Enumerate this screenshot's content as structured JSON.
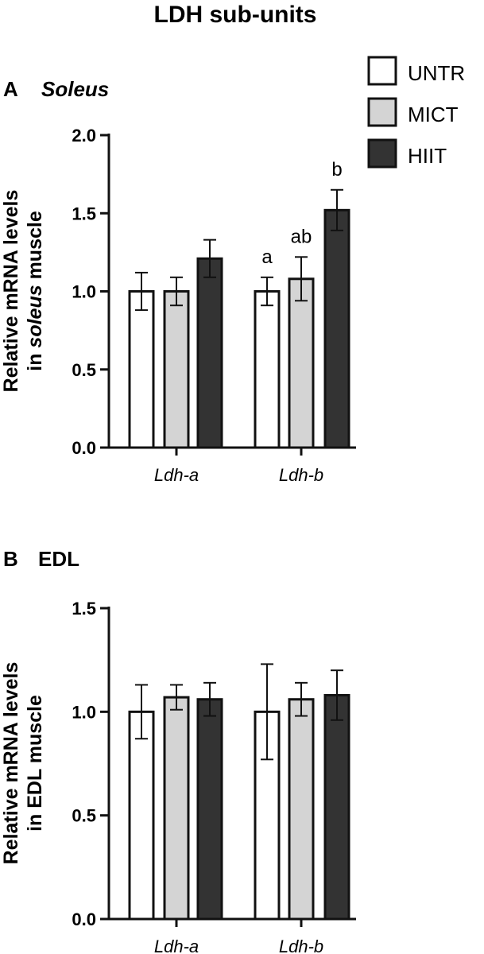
{
  "figure_title": "LDH sub-units",
  "legend": [
    {
      "label": "UNTR",
      "color": "#ffffff"
    },
    {
      "label": "MICT",
      "color": "#d4d4d4"
    },
    {
      "label": "HIIT",
      "color": "#333333"
    }
  ],
  "chart_data": [
    {
      "type": "bar",
      "panel_letter": "A",
      "panel_name": "Soleus",
      "ylabel_pre": "Relative mRNA levels",
      "ylabel_line2_pre": "in ",
      "ylabel_line2_em": "soleus",
      "ylabel_line2_post": " muscle",
      "categories": [
        "Ldh-a",
        "Ldh-b"
      ],
      "ylim": [
        0,
        2.0
      ],
      "yticks": [
        "0.0",
        "0.5",
        "1.0",
        "1.5",
        "2.0"
      ],
      "series": [
        {
          "name": "UNTR",
          "values": [
            1.0,
            1.0
          ],
          "errors": [
            0.12,
            0.09
          ]
        },
        {
          "name": "MICT",
          "values": [
            1.0,
            1.08
          ],
          "errors": [
            0.09,
            0.14
          ]
        },
        {
          "name": "HIIT",
          "values": [
            1.21,
            1.52
          ],
          "errors": [
            0.12,
            0.13
          ]
        }
      ],
      "annotations": [
        {
          "category": 1,
          "series": 0,
          "text": "a"
        },
        {
          "category": 1,
          "series": 1,
          "text": "ab"
        },
        {
          "category": 1,
          "series": 2,
          "text": "b"
        }
      ]
    },
    {
      "type": "bar",
      "panel_letter": "B",
      "panel_name": "EDL",
      "ylabel_pre": "Relative mRNA levels",
      "ylabel_line2_pre": "in EDL muscle",
      "ylabel_line2_em": "",
      "ylabel_line2_post": "",
      "categories": [
        "Ldh-a",
        "Ldh-b"
      ],
      "ylim": [
        0,
        1.5
      ],
      "yticks": [
        "0.0",
        "0.5",
        "1.0",
        "1.5"
      ],
      "series": [
        {
          "name": "UNTR",
          "values": [
            1.0,
            1.0
          ],
          "errors": [
            0.13,
            0.23
          ]
        },
        {
          "name": "MICT",
          "values": [
            1.07,
            1.06
          ],
          "errors": [
            0.06,
            0.08
          ]
        },
        {
          "name": "HIIT",
          "values": [
            1.06,
            1.08
          ],
          "errors": [
            0.08,
            0.12
          ]
        }
      ],
      "annotations": []
    }
  ]
}
